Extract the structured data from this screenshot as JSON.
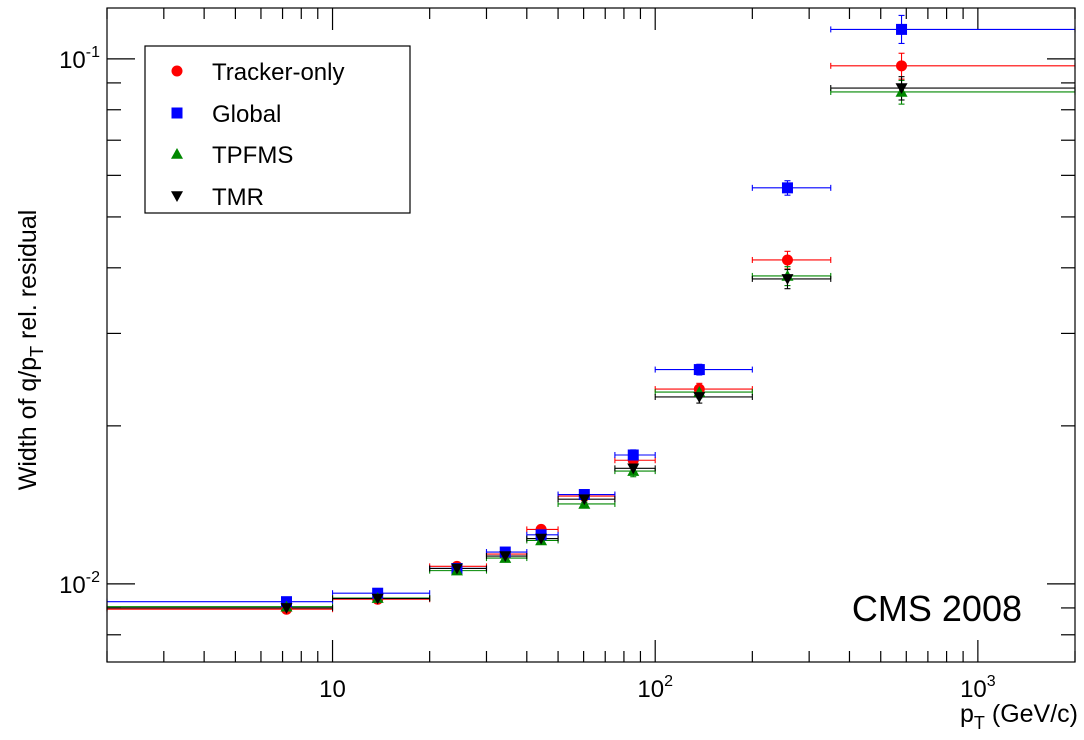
{
  "chart_data": {
    "type": "scatter",
    "xscale": "log",
    "yscale": "log",
    "xlim": [
      2,
      2000
    ],
    "ylim": [
      0.0071,
      0.125
    ],
    "xlabel_main": "p",
    "xlabel_sub": "T",
    "xlabel_rest": " (GeV/c)",
    "ylabel_main": "Width of q/p",
    "ylabel_sub": "T",
    "ylabel_rest": " rel. residual",
    "x_tick_labels": [
      {
        "value": 10,
        "base": "10",
        "exp": ""
      },
      {
        "value": 100,
        "base": "10",
        "exp": "2"
      },
      {
        "value": 1000,
        "base": "10",
        "exp": "3"
      }
    ],
    "y_tick_labels": [
      {
        "value": 0.01,
        "base": "10",
        "exp": "-2"
      },
      {
        "value": 0.1,
        "base": "10",
        "exp": "-1"
      }
    ],
    "annotation": "CMS 2008",
    "legend": {
      "position": "top-left"
    },
    "series": [
      {
        "name": "Tracker-only",
        "color": "#ff0000",
        "marker": "circle",
        "points": [
          {
            "x": 7.2,
            "xlo": 2,
            "xhi": 10,
            "y": 0.00895,
            "ylo": 0.00888,
            "yhi": 0.00902
          },
          {
            "x": 13.8,
            "xlo": 10,
            "xhi": 20,
            "y": 0.00935,
            "ylo": 0.00928,
            "yhi": 0.00942
          },
          {
            "x": 24.3,
            "xlo": 20,
            "xhi": 30,
            "y": 0.0108,
            "ylo": 0.0107,
            "yhi": 0.0109
          },
          {
            "x": 34.3,
            "xlo": 30,
            "xhi": 40,
            "y": 0.0114,
            "ylo": 0.0113,
            "yhi": 0.0115
          },
          {
            "x": 44.3,
            "xlo": 40,
            "xhi": 50,
            "y": 0.0127,
            "ylo": 0.0125,
            "yhi": 0.0129
          },
          {
            "x": 60.3,
            "xlo": 50,
            "xhi": 75,
            "y": 0.0147,
            "ylo": 0.0145,
            "yhi": 0.0149
          },
          {
            "x": 85.5,
            "xlo": 75,
            "xhi": 100,
            "y": 0.0172,
            "ylo": 0.0168,
            "yhi": 0.0176
          },
          {
            "x": 137,
            "xlo": 100,
            "xhi": 200,
            "y": 0.0235,
            "ylo": 0.0229,
            "yhi": 0.0241
          },
          {
            "x": 257,
            "xlo": 200,
            "xhi": 350,
            "y": 0.0414,
            "ylo": 0.0398,
            "yhi": 0.043
          },
          {
            "x": 580,
            "xlo": 350,
            "xhi": 2000,
            "y": 0.097,
            "ylo": 0.0915,
            "yhi": 0.1025
          }
        ]
      },
      {
        "name": "Global",
        "color": "#0000ff",
        "marker": "square",
        "points": [
          {
            "x": 7.2,
            "xlo": 2,
            "xhi": 10,
            "y": 0.00925,
            "ylo": 0.00918,
            "yhi": 0.00932
          },
          {
            "x": 13.8,
            "xlo": 10,
            "xhi": 20,
            "y": 0.0096,
            "ylo": 0.00953,
            "yhi": 0.00967
          },
          {
            "x": 24.3,
            "xlo": 20,
            "xhi": 30,
            "y": 0.0107,
            "ylo": 0.0106,
            "yhi": 0.0108
          },
          {
            "x": 34.3,
            "xlo": 30,
            "xhi": 40,
            "y": 0.0115,
            "ylo": 0.0114,
            "yhi": 0.0116
          },
          {
            "x": 44.3,
            "xlo": 40,
            "xhi": 50,
            "y": 0.0124,
            "ylo": 0.0122,
            "yhi": 0.0126
          },
          {
            "x": 60.3,
            "xlo": 50,
            "xhi": 75,
            "y": 0.0148,
            "ylo": 0.0146,
            "yhi": 0.015
          },
          {
            "x": 85.5,
            "xlo": 75,
            "xhi": 100,
            "y": 0.0176,
            "ylo": 0.0172,
            "yhi": 0.018
          },
          {
            "x": 137,
            "xlo": 100,
            "xhi": 200,
            "y": 0.0256,
            "ylo": 0.025,
            "yhi": 0.0262
          },
          {
            "x": 257,
            "xlo": 200,
            "xhi": 350,
            "y": 0.0568,
            "ylo": 0.055,
            "yhi": 0.0586
          },
          {
            "x": 580,
            "xlo": 350,
            "xhi": 2000,
            "y": 0.1138,
            "ylo": 0.107,
            "yhi": 0.121
          }
        ]
      },
      {
        "name": "TPFMS",
        "color": "#008800",
        "marker": "triangle-up",
        "points": [
          {
            "x": 7.2,
            "xlo": 2,
            "xhi": 10,
            "y": 0.00905,
            "ylo": 0.00898,
            "yhi": 0.00912
          },
          {
            "x": 13.8,
            "xlo": 10,
            "xhi": 20,
            "y": 0.0094,
            "ylo": 0.00933,
            "yhi": 0.00947
          },
          {
            "x": 24.3,
            "xlo": 20,
            "xhi": 30,
            "y": 0.0106,
            "ylo": 0.0105,
            "yhi": 0.0107
          },
          {
            "x": 34.3,
            "xlo": 30,
            "xhi": 40,
            "y": 0.0112,
            "ylo": 0.0111,
            "yhi": 0.0113
          },
          {
            "x": 44.3,
            "xlo": 40,
            "xhi": 50,
            "y": 0.0121,
            "ylo": 0.0119,
            "yhi": 0.0123
          },
          {
            "x": 60.3,
            "xlo": 50,
            "xhi": 75,
            "y": 0.0142,
            "ylo": 0.014,
            "yhi": 0.0144
          },
          {
            "x": 85.5,
            "xlo": 75,
            "xhi": 100,
            "y": 0.0164,
            "ylo": 0.016,
            "yhi": 0.0168
          },
          {
            "x": 137,
            "xlo": 100,
            "xhi": 200,
            "y": 0.0232,
            "ylo": 0.0226,
            "yhi": 0.0238
          },
          {
            "x": 257,
            "xlo": 200,
            "xhi": 350,
            "y": 0.0386,
            "ylo": 0.037,
            "yhi": 0.0402
          },
          {
            "x": 580,
            "xlo": 350,
            "xhi": 2000,
            "y": 0.0865,
            "ylo": 0.082,
            "yhi": 0.091
          }
        ]
      },
      {
        "name": "TMR",
        "color": "#000000",
        "marker": "triangle-down",
        "points": [
          {
            "x": 7.2,
            "xlo": 2,
            "xhi": 10,
            "y": 0.009,
            "ylo": 0.00893,
            "yhi": 0.00907
          },
          {
            "x": 13.8,
            "xlo": 10,
            "xhi": 20,
            "y": 0.00938,
            "ylo": 0.00931,
            "yhi": 0.00945
          },
          {
            "x": 24.3,
            "xlo": 20,
            "xhi": 30,
            "y": 0.0107,
            "ylo": 0.0106,
            "yhi": 0.0108
          },
          {
            "x": 34.3,
            "xlo": 30,
            "xhi": 40,
            "y": 0.0113,
            "ylo": 0.0112,
            "yhi": 0.0114
          },
          {
            "x": 44.3,
            "xlo": 40,
            "xhi": 50,
            "y": 0.0122,
            "ylo": 0.012,
            "yhi": 0.0124
          },
          {
            "x": 60.3,
            "xlo": 50,
            "xhi": 75,
            "y": 0.0145,
            "ylo": 0.0143,
            "yhi": 0.0147
          },
          {
            "x": 85.5,
            "xlo": 75,
            "xhi": 100,
            "y": 0.0166,
            "ylo": 0.0162,
            "yhi": 0.017
          },
          {
            "x": 137,
            "xlo": 100,
            "xhi": 200,
            "y": 0.0227,
            "ylo": 0.0221,
            "yhi": 0.0233
          },
          {
            "x": 257,
            "xlo": 200,
            "xhi": 350,
            "y": 0.0381,
            "ylo": 0.0365,
            "yhi": 0.0397
          },
          {
            "x": 580,
            "xlo": 350,
            "xhi": 2000,
            "y": 0.088,
            "ylo": 0.0835,
            "yhi": 0.0925
          }
        ]
      }
    ]
  }
}
